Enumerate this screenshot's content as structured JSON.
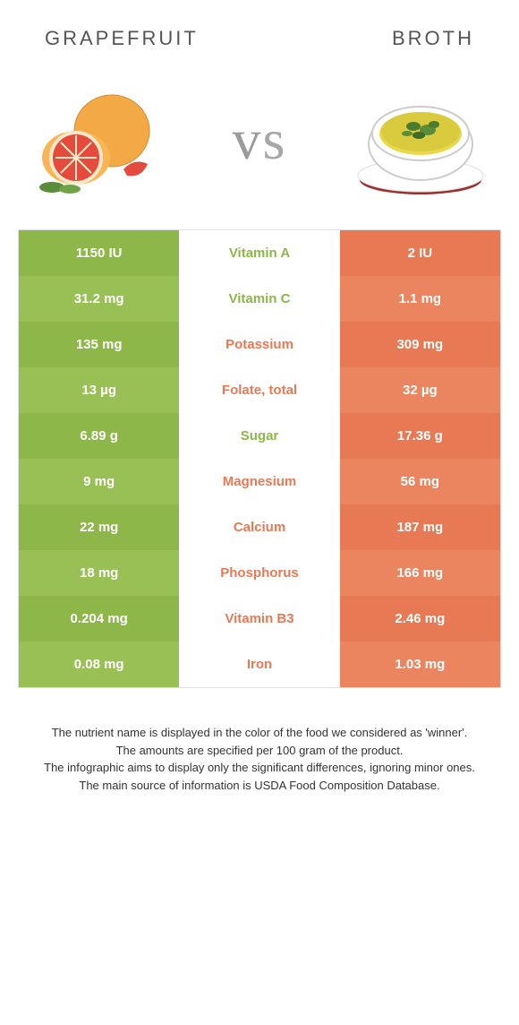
{
  "header": {
    "left": "Grapefruit",
    "right": "Broth"
  },
  "vs": {
    "text": "vs"
  },
  "colors": {
    "green": "#8db748",
    "orange": "#e77a54",
    "green_alt": "#99c055",
    "orange_alt": "#ea8560"
  },
  "rows": [
    {
      "left": "1150 IU",
      "label": "Vitamin A",
      "right": "2 IU",
      "winner": "left"
    },
    {
      "left": "31.2 mg",
      "label": "Vitamin C",
      "right": "1.1 mg",
      "winner": "left"
    },
    {
      "left": "135 mg",
      "label": "Potassium",
      "right": "309 mg",
      "winner": "right"
    },
    {
      "left": "13 µg",
      "label": "Folate, total",
      "right": "32 µg",
      "winner": "right"
    },
    {
      "left": "6.89 g",
      "label": "Sugar",
      "right": "17.36 g",
      "winner": "left"
    },
    {
      "left": "9 mg",
      "label": "Magnesium",
      "right": "56 mg",
      "winner": "right"
    },
    {
      "left": "22 mg",
      "label": "Calcium",
      "right": "187 mg",
      "winner": "right"
    },
    {
      "left": "18 mg",
      "label": "Phosphorus",
      "right": "166 mg",
      "winner": "right"
    },
    {
      "left": "0.204 mg",
      "label": "Vitamin B3",
      "right": "2.46 mg",
      "winner": "right"
    },
    {
      "left": "0.08 mg",
      "label": "Iron",
      "right": "1.03 mg",
      "winner": "right"
    }
  ],
  "footer": {
    "line1": "The nutrient name is displayed in the color of the food we considered as 'winner'.",
    "line2": "The amounts are specified per 100 gram of the product.",
    "line3": "The infographic aims to display only the significant differences, ignoring minor ones.",
    "line4": "The main source of information is USDA Food Composition Database."
  }
}
